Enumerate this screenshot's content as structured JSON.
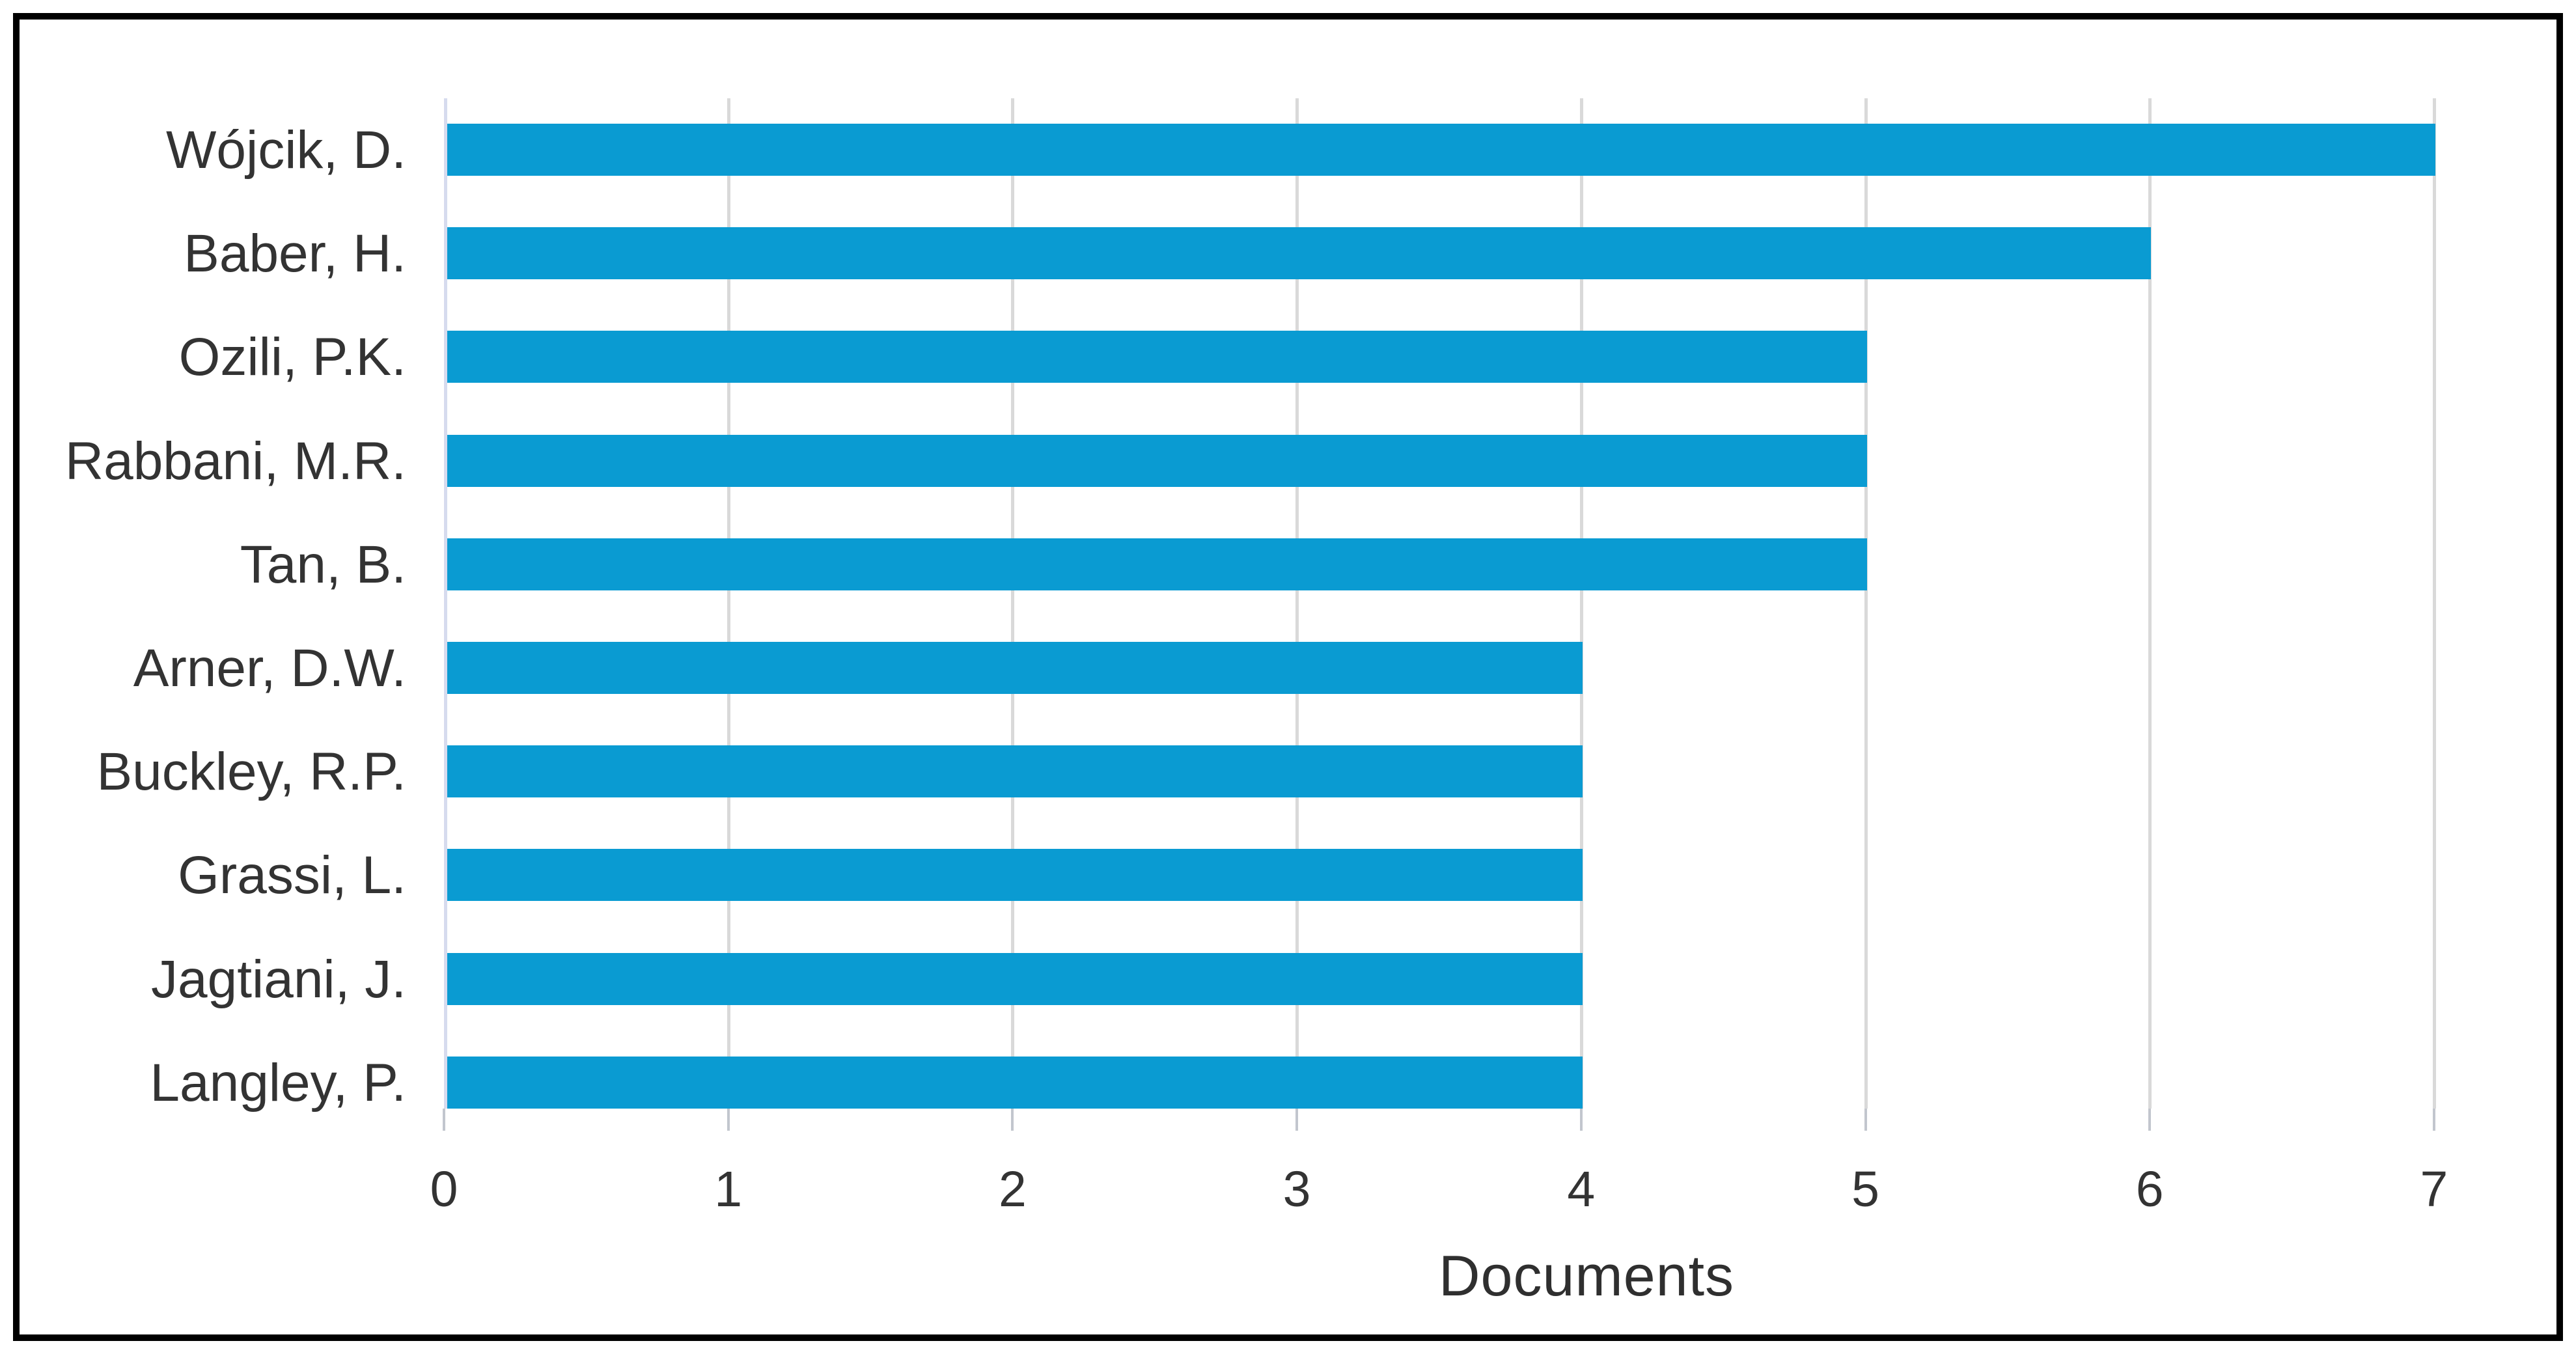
{
  "figure": {
    "background": "#ffffff",
    "frame_border_color": "#000000"
  },
  "chart_data": {
    "type": "bar",
    "orientation": "horizontal",
    "title": "",
    "xlabel": "Documents",
    "ylabel": "",
    "categories": [
      "Wójcik, D.",
      "Baber, H.",
      "Ozili, P.K.",
      "Rabbani, M.R.",
      "Tan, B.",
      "Arner, D.W.",
      "Buckley, R.P.",
      "Grassi, L.",
      "Jagtiani, J.",
      "Langley, P."
    ],
    "values": [
      7,
      6,
      5,
      5,
      5,
      4,
      4,
      4,
      4,
      4
    ],
    "xlim": [
      0,
      7.42
    ],
    "xticks": [
      0,
      1,
      2,
      3,
      4,
      5,
      6,
      7
    ],
    "grid": true,
    "legend_position": "none",
    "bar_color": "#0a9bd2",
    "gridline_color": "#d9d9d9",
    "axis_line_color": "#d6dbee",
    "tick_mark_color": "#c2c6ce",
    "text_color": "#333333"
  }
}
